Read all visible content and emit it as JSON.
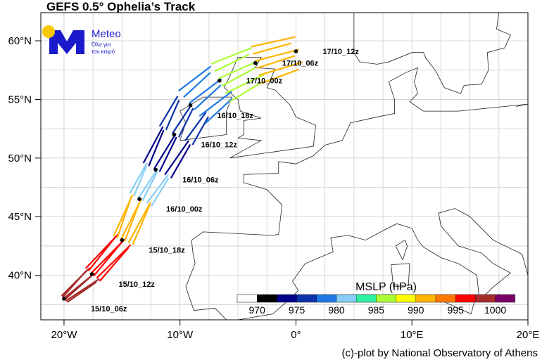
{
  "title": "GEFS 0.5° Ophelia’s Track",
  "credit": "(c)-plot by National Observatory of Athens",
  "logo": {
    "name": "Meteo",
    "tagline_1": "Όλα για",
    "tagline_2": "τον καιρό",
    "brand_color": "#1a1acc",
    "sun_color": "#f5c800"
  },
  "axes": {
    "lon_ticks": [
      {
        "v": -20,
        "label": "20°W"
      },
      {
        "v": -10,
        "label": "10°W"
      },
      {
        "v": 0,
        "label": "0°"
      },
      {
        "v": 10,
        "label": "10°E"
      },
      {
        "v": 20,
        "label": "20°E"
      }
    ],
    "lat_ticks": [
      {
        "v": 60,
        "label": "60°N"
      },
      {
        "v": 55,
        "label": "55°N"
      },
      {
        "v": 50,
        "label": "50°N"
      },
      {
        "v": 45,
        "label": "45°N"
      },
      {
        "v": 40,
        "label": "40°N"
      }
    ],
    "lon_range": [
      -22,
      20
    ],
    "lat_range": [
      36.2,
      62.4
    ],
    "grid_step": 2.5
  },
  "colorbar": {
    "title": "MSLP (hPa)",
    "colors": [
      "#ffffff",
      "#000000",
      "#00008b",
      "#0a32aa",
      "#1e78e6",
      "#87cdf5",
      "#2df0a0",
      "#aaff32",
      "#ffff00",
      "#ffb400",
      "#ff7800",
      "#ff0000",
      "#a52a2a",
      "#780064"
    ],
    "labels": [
      "970",
      "975",
      "980",
      "985",
      "990",
      "995",
      "1000"
    ]
  },
  "track": [
    {
      "label": "15/10_06z",
      "lon": -20.0,
      "lat": 38.0,
      "seg_color": "#a52a2a",
      "spread": 0.4
    },
    {
      "label": "15/10_12z",
      "lon": -17.6,
      "lat": 40.1,
      "seg_color": "#ff0000",
      "spread": 0.9
    },
    {
      "label": "15/10_18z",
      "lon": -15.0,
      "lat": 43.0,
      "seg_color": "#ffb400",
      "spread": 1.0
    },
    {
      "label": "16/10_00z",
      "lon": -13.5,
      "lat": 46.5,
      "seg_color": "#87cdf5",
      "spread": 1.2
    },
    {
      "label": "16/10_06z",
      "lon": -12.1,
      "lat": 49.0,
      "seg_color": "#00008b",
      "spread": 1.5
    },
    {
      "label": "16/10_12z",
      "lon": -10.5,
      "lat": 52.0,
      "seg_color": "#0a32aa",
      "spread": 1.8
    },
    {
      "label": "16/10_18z",
      "lon": -9.1,
      "lat": 54.5,
      "seg_color": "#1e78e6",
      "spread": 2.0
    },
    {
      "label": "17/10_00z",
      "lon": -6.6,
      "lat": 56.6,
      "seg_color": "#aaff32",
      "spread": 2.0
    },
    {
      "label": "17/10_06z",
      "lon": -3.5,
      "lat": 58.1,
      "seg_color": "#ffb400",
      "spread": 1.8
    },
    {
      "label": "17/10_12z",
      "lon": 0.0,
      "lat": 59.1,
      "seg_color": "#ffb400",
      "spread": 1.6
    }
  ]
}
